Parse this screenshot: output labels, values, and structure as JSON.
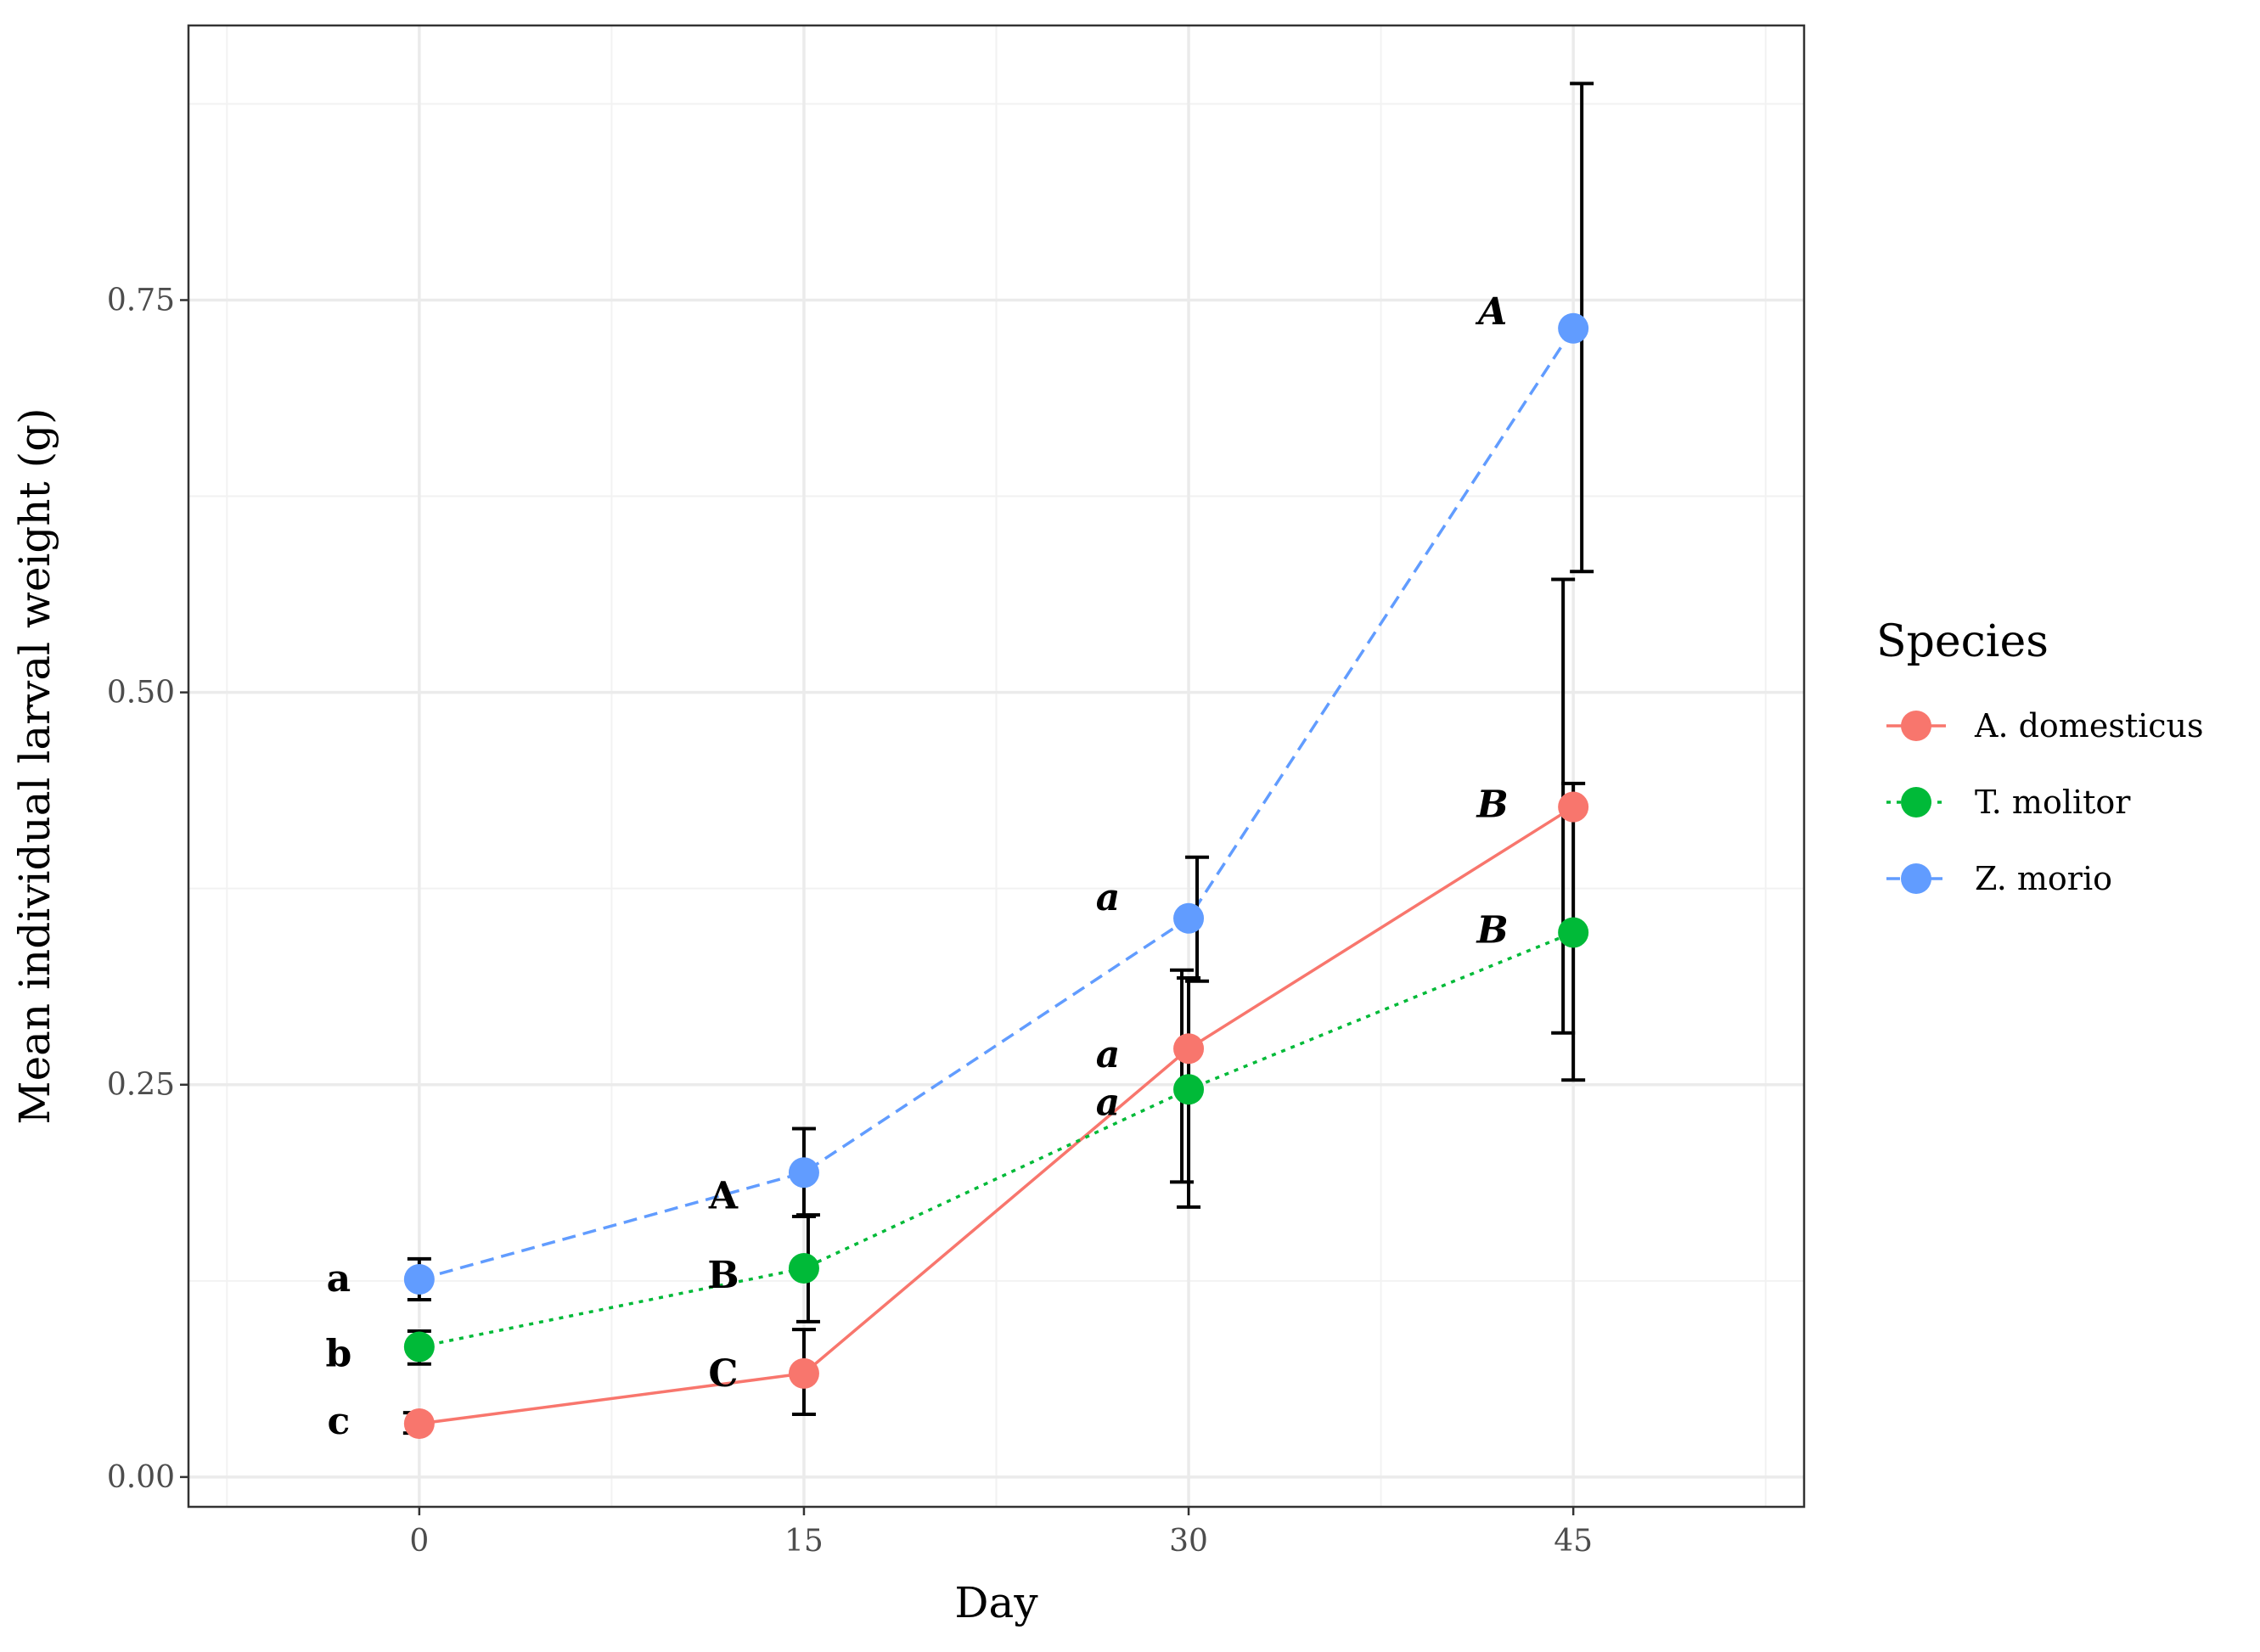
{
  "chart_data": {
    "type": "line",
    "title": "",
    "xlabel": "Day",
    "ylabel": "Mean individual larval weight (g)",
    "x": [
      0,
      15,
      30,
      45
    ],
    "xlim": [
      -9,
      54
    ],
    "ylim": [
      -0.019,
      0.925
    ],
    "xticks": [
      0,
      15,
      30,
      45
    ],
    "xtick_labels": [
      "0",
      "15",
      "30",
      "45"
    ],
    "yticks": [
      0,
      0.25,
      0.5,
      0.75
    ],
    "ytick_labels": [
      "0.00",
      "0.25",
      "0.50",
      "0.75"
    ],
    "grid": true,
    "legend": {
      "title": "Species",
      "position": "right"
    },
    "series": [
      {
        "name": "A. domesticus",
        "color": "#F8766D",
        "dash": "solid",
        "values": [
          0.034,
          0.066,
          0.273,
          0.427
        ],
        "error_low": [
          0.028,
          0.04,
          0.188,
          0.283
        ],
        "error_high": [
          0.041,
          0.094,
          0.323,
          0.572
        ],
        "letters": [
          "c",
          "C",
          "a",
          "B"
        ],
        "letter_italic": [
          false,
          false,
          true,
          true
        ]
      },
      {
        "name": "T. molitor",
        "color": "#00BA38",
        "dash": "dotted",
        "values": [
          0.083,
          0.133,
          0.247,
          0.347
        ],
        "error_low": [
          0.072,
          0.099,
          0.172,
          0.253
        ],
        "error_high": [
          0.093,
          0.167,
          0.318,
          0.442
        ],
        "letters": [
          "b",
          "B",
          "a",
          "B"
        ],
        "letter_italic": [
          false,
          false,
          true,
          true
        ]
      },
      {
        "name": "Z. morio",
        "color": "#619CFF",
        "dash": "dashed",
        "values": [
          0.126,
          0.194,
          0.356,
          0.732
        ],
        "error_low": [
          0.113,
          0.166,
          0.316,
          0.577
        ],
        "error_high": [
          0.139,
          0.222,
          0.395,
          0.888
        ],
        "letters": [
          "a",
          "A",
          "a",
          "A"
        ],
        "letter_italic": [
          false,
          false,
          true,
          true
        ]
      }
    ]
  }
}
